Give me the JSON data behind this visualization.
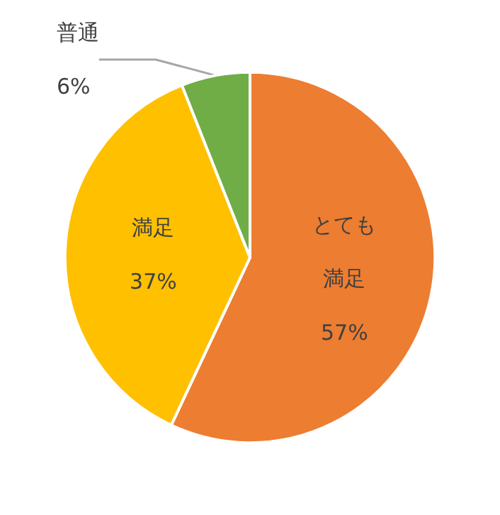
{
  "chart_data": {
    "type": "pie",
    "categories": [
      "とても満足",
      "満足",
      "普通"
    ],
    "values": [
      57,
      37,
      6
    ],
    "colors": [
      "#ed7d31",
      "#ffc000",
      "#70ad47"
    ],
    "value_labels": [
      "57%",
      "37%",
      "6%"
    ],
    "legend": false
  }
}
